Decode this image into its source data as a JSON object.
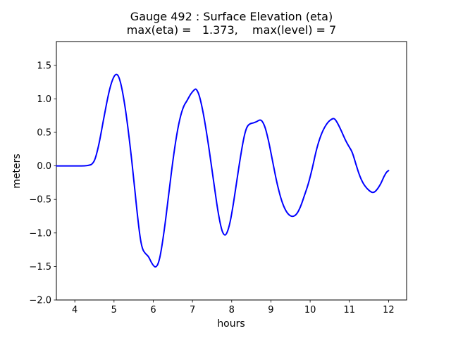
{
  "chart_data": {
    "type": "line",
    "title": "Gauge 492 : Surface Elevation (eta)",
    "subtitle": "max(eta) =   1.373,    max(level) = 7",
    "xlabel": "hours",
    "ylabel": "meters",
    "xlim": [
      3.53,
      12.46
    ],
    "ylim": [
      -2.0,
      1.855
    ],
    "grid": false,
    "legend": false,
    "x_ticks": [
      4,
      5,
      6,
      7,
      8,
      9,
      10,
      11,
      12
    ],
    "y_ticks": [
      {
        "value": 1.5,
        "label": "1.5"
      },
      {
        "value": 1.0,
        "label": "1.0"
      },
      {
        "value": 0.5,
        "label": "0.5"
      },
      {
        "value": 0.0,
        "label": "0.0"
      },
      {
        "value": -0.5,
        "label": "−0.5"
      },
      {
        "value": -1.0,
        "label": "−1.0"
      },
      {
        "value": -1.5,
        "label": "−1.5"
      },
      {
        "value": -2.0,
        "label": "−2.0"
      }
    ],
    "line_color": "#0000ff",
    "line_width": 2,
    "max_eta": 1.373,
    "max_level": 7,
    "series": [
      {
        "name": "eta",
        "x": [
          3.53,
          3.7,
          3.9,
          4.1,
          4.25,
          4.38,
          4.45,
          4.52,
          4.6,
          4.68,
          4.76,
          4.84,
          4.92,
          5.0,
          5.06,
          5.12,
          5.2,
          5.3,
          5.4,
          5.5,
          5.58,
          5.66,
          5.72,
          5.8,
          5.88,
          5.95,
          6.02,
          6.07,
          6.13,
          6.2,
          6.3,
          6.4,
          6.5,
          6.6,
          6.7,
          6.78,
          6.86,
          6.95,
          7.05,
          7.1,
          7.18,
          7.28,
          7.38,
          7.48,
          7.58,
          7.66,
          7.74,
          7.8,
          7.86,
          7.94,
          8.02,
          8.1,
          8.2,
          8.3,
          8.38,
          8.46,
          8.55,
          8.64,
          8.72,
          8.78,
          8.86,
          8.95,
          9.05,
          9.15,
          9.25,
          9.35,
          9.45,
          9.55,
          9.65,
          9.75,
          9.85,
          9.95,
          10.05,
          10.15,
          10.25,
          10.35,
          10.45,
          10.55,
          10.62,
          10.7,
          10.8,
          10.9,
          11.0,
          11.08,
          11.16,
          11.25,
          11.35,
          11.45,
          11.55,
          11.62,
          11.7,
          11.8,
          11.88,
          11.95,
          12.0
        ],
        "y": [
          0,
          0,
          0,
          0,
          0,
          0.01,
          0.03,
          0.1,
          0.28,
          0.52,
          0.78,
          1.02,
          1.22,
          1.34,
          1.373,
          1.34,
          1.17,
          0.82,
          0.35,
          -0.18,
          -0.65,
          -1.05,
          -1.24,
          -1.31,
          -1.35,
          -1.44,
          -1.5,
          -1.51,
          -1.46,
          -1.28,
          -0.88,
          -0.4,
          0.08,
          0.48,
          0.76,
          0.9,
          0.97,
          1.07,
          1.14,
          1.15,
          1.05,
          0.78,
          0.42,
          0.02,
          -0.4,
          -0.72,
          -0.95,
          -1.03,
          -1.03,
          -0.9,
          -0.65,
          -0.35,
          0.05,
          0.4,
          0.58,
          0.63,
          0.64,
          0.66,
          0.69,
          0.67,
          0.57,
          0.35,
          0.05,
          -0.25,
          -0.48,
          -0.64,
          -0.73,
          -0.76,
          -0.73,
          -0.62,
          -0.45,
          -0.28,
          -0.05,
          0.22,
          0.42,
          0.56,
          0.65,
          0.7,
          0.71,
          0.64,
          0.52,
          0.38,
          0.28,
          0.2,
          0.04,
          -0.13,
          -0.26,
          -0.34,
          -0.39,
          -0.4,
          -0.36,
          -0.27,
          -0.16,
          -0.09,
          -0.07
        ]
      }
    ]
  }
}
